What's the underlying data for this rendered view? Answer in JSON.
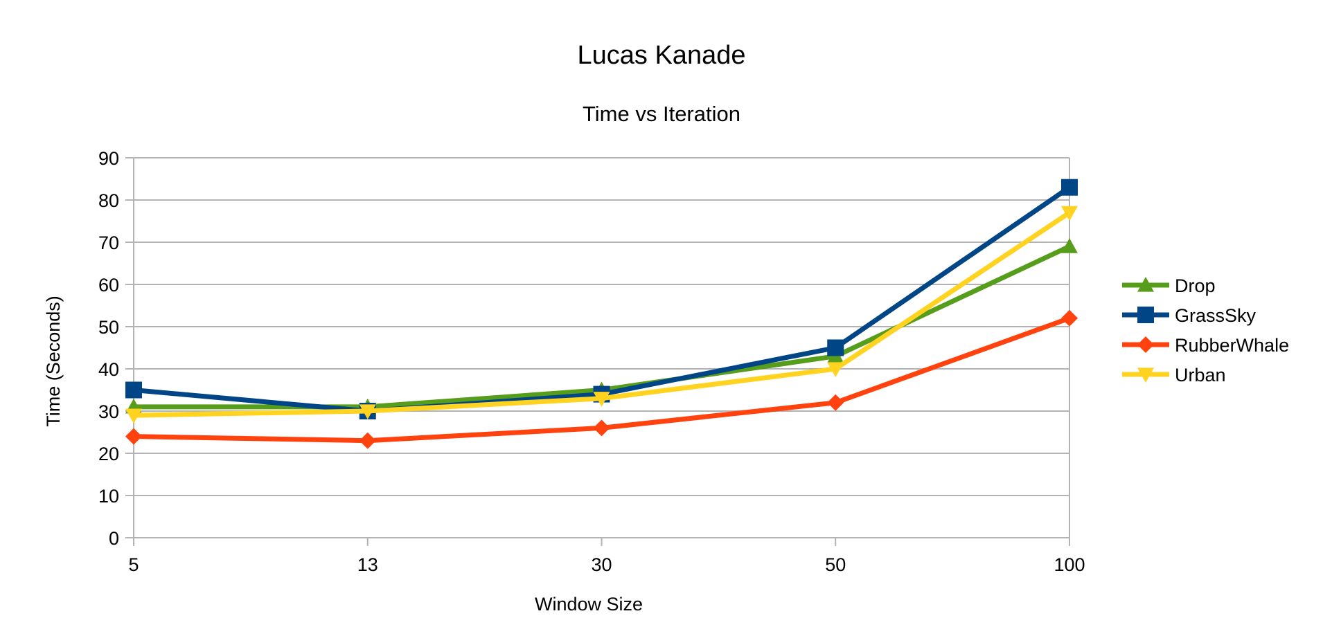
{
  "chart_data": {
    "type": "line",
    "title": "Lucas Kanade",
    "subtitle": "Time vs Iteration",
    "xlabel": "Window Size",
    "ylabel": "Time (Seconds)",
    "categories": [
      "5",
      "13",
      "30",
      "50",
      "100"
    ],
    "ylim": [
      0,
      90
    ],
    "yticks": [
      0,
      10,
      20,
      30,
      40,
      50,
      60,
      70,
      80,
      90
    ],
    "grid": true,
    "legend_position": "right",
    "series": [
      {
        "name": "Drop",
        "color": "#579d1c",
        "marker": "triangle-up",
        "values": [
          31,
          31,
          35,
          43,
          69
        ]
      },
      {
        "name": "GrassSky",
        "color": "#004586",
        "marker": "square",
        "values": [
          35,
          30,
          34,
          45,
          83
        ]
      },
      {
        "name": "RubberWhale",
        "color": "#ff420e",
        "marker": "diamond",
        "values": [
          24,
          23,
          26,
          32,
          52
        ]
      },
      {
        "name": "Urban",
        "color": "#ffd320",
        "marker": "triangle-down",
        "values": [
          29,
          30,
          33,
          40,
          77
        ]
      }
    ]
  }
}
